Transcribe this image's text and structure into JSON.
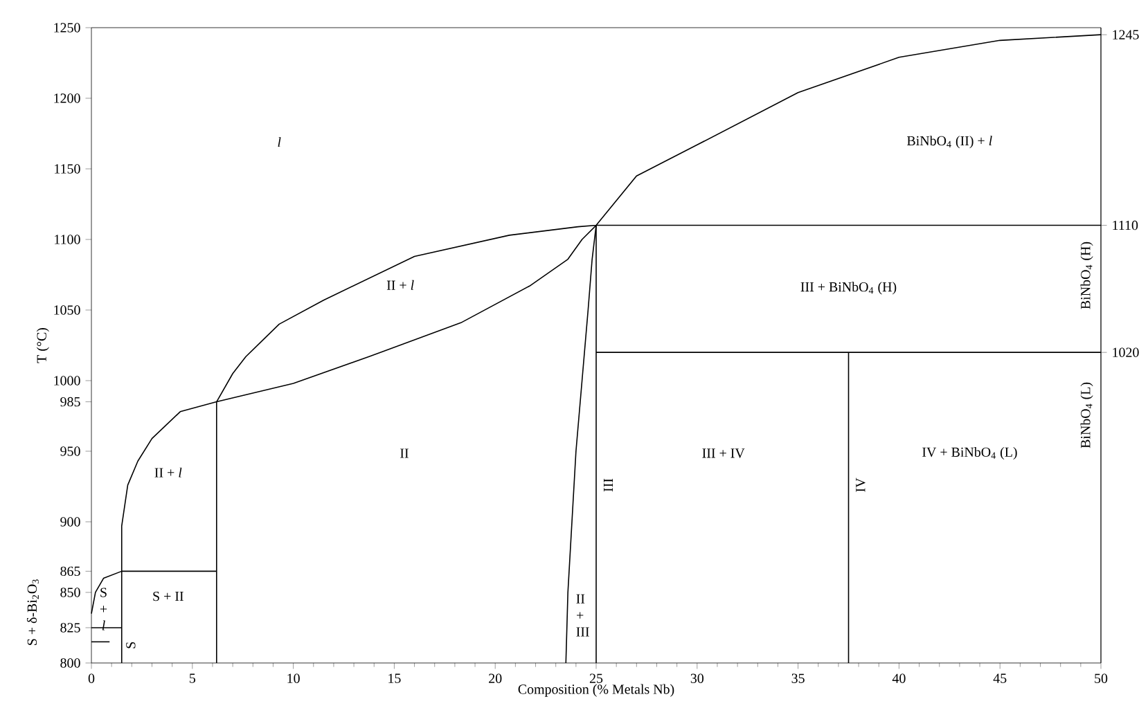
{
  "chart_data": {
    "type": "line",
    "xlabel": "Composition (% Metals Nb)",
    "ylabel": "T (°C)",
    "xlim": [
      0,
      50
    ],
    "xticks": [
      0,
      5,
      10,
      15,
      20,
      25,
      30,
      35,
      40,
      45,
      50
    ],
    "ylim": [
      800,
      1250
    ],
    "yticks": [
      800,
      825,
      850,
      865,
      900,
      950,
      985,
      1000,
      1050,
      1100,
      1150,
      1200,
      1250
    ],
    "y2lim": [
      800,
      1250
    ],
    "y2ticks": [
      1020,
      1110,
      1245
    ],
    "line_style": "solid",
    "grid": false,
    "series": [
      {
        "color": "#000000",
        "x": [
          0,
          0.2,
          0.6,
          1.5,
          6.2
        ],
        "values": [
          835,
          850,
          860,
          865,
          865
        ]
      },
      {
        "color": "#000000",
        "x": [
          0,
          1.5
        ],
        "values": [
          825,
          825
        ]
      },
      {
        "color": "#000000",
        "x": [
          0,
          0.9
        ],
        "values": [
          815,
          815
        ]
      },
      {
        "color": "#000000",
        "x": [
          1.5,
          1.5,
          1.8,
          2.3,
          3,
          4.4,
          6.2,
          10,
          13.75,
          18.3,
          21.7,
          23.6,
          24.3,
          25
        ],
        "values": [
          800,
          897,
          926,
          943,
          959,
          978,
          985,
          998,
          1017,
          1041,
          1067,
          1086,
          1100,
          1110
        ]
      },
      {
        "color": "#000000",
        "x": [
          6.2,
          6.2
        ],
        "values": [
          800,
          985
        ]
      },
      {
        "color": "#000000",
        "x": [
          6.2,
          7,
          7.65,
          9.3,
          11.5,
          16,
          20.7,
          24.1,
          25,
          27,
          30,
          35,
          40,
          45,
          50
        ],
        "values": [
          985,
          1005,
          1017,
          1040,
          1057,
          1088,
          1103,
          1109,
          1110,
          1145,
          1167,
          1204,
          1229,
          1241,
          1245
        ]
      },
      {
        "color": "#000000",
        "x": [
          23.5,
          23.6,
          23.8,
          24.0,
          24.3,
          24.6,
          24.8,
          25
        ],
        "values": [
          800,
          850,
          900,
          950,
          1000,
          1050,
          1086,
          1110
        ]
      },
      {
        "color": "#000000",
        "x": [
          25,
          25
        ],
        "values": [
          800,
          1110
        ]
      },
      {
        "color": "#000000",
        "x": [
          25,
          50
        ],
        "values": [
          1110,
          1110
        ]
      },
      {
        "color": "#000000",
        "x": [
          25,
          50
        ],
        "values": [
          1020,
          1020
        ]
      },
      {
        "color": "#000000",
        "x": [
          37.5,
          37.5
        ],
        "values": [
          800,
          1020
        ]
      }
    ],
    "annotations": [
      "l",
      "II + *l*",
      "BiNbO$_{4}$ (II) + *l*",
      "III + BiNbO$_{4}$ (H)",
      "II + *l*",
      "II",
      "III + IV",
      "IV + BiNbO$_{4}$ (L)",
      "S + II",
      "S + *l*",
      "S",
      "II + III",
      "III",
      "IV",
      "BiNbO$_{4}$ (H)",
      "BiNbO$_{4}$ (L)",
      "S + δ-Bi$_{2}$O$_{3}$"
    ]
  }
}
